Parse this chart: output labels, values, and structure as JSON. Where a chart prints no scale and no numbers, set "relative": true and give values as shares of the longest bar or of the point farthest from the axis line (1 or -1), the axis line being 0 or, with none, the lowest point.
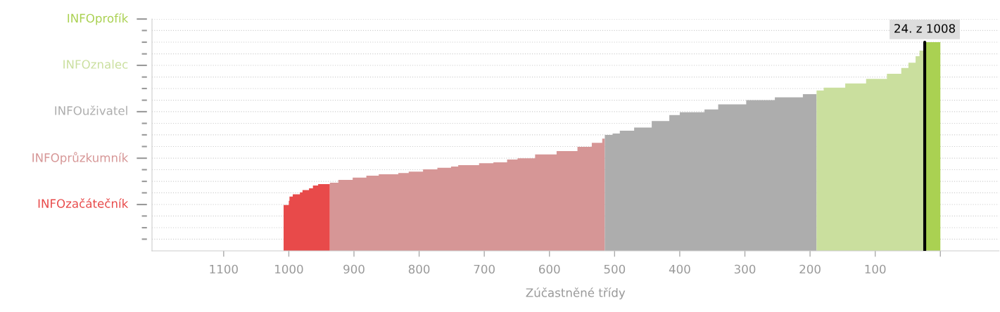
{
  "chart_data": {
    "type": "area",
    "xlabel": "Zúčastněné třídy",
    "relative": true,
    "xlim": [
      1210,
      -90
    ],
    "xticks": [
      1100,
      1000,
      900,
      800,
      700,
      600,
      500,
      400,
      300,
      200,
      100,
      {
        "value": 0,
        "label": null
      }
    ],
    "legend": false,
    "series": [
      {
        "color": "#e84a4a",
        "x": [
          1008,
          1000,
          999,
          994,
          983,
          979,
          969,
          963,
          955,
          937
        ],
        "values": [
          0.22,
          0.24,
          0.26,
          0.271,
          0.28,
          0.291,
          0.3,
          0.313,
          0.32,
          0.32
        ]
      },
      {
        "color": "#d69696",
        "x": [
          937,
          924,
          902,
          881,
          862,
          832,
          816,
          794,
          772,
          751,
          740,
          708,
          686,
          665,
          649,
          622,
          589,
          557,
          535,
          519,
          515
        ],
        "values": [
          0.327,
          0.34,
          0.351,
          0.36,
          0.367,
          0.373,
          0.38,
          0.391,
          0.398,
          0.404,
          0.411,
          0.42,
          0.424,
          0.438,
          0.444,
          0.462,
          0.478,
          0.498,
          0.518,
          0.538,
          0.538
        ]
      },
      {
        "color": "#adadad",
        "x": [
          515,
          503,
          492,
          470,
          443,
          416,
          400,
          373,
          362,
          341,
          298,
          254,
          211,
          190
        ],
        "values": [
          0.556,
          0.562,
          0.576,
          0.591,
          0.622,
          0.651,
          0.664,
          0.664,
          0.678,
          0.702,
          0.722,
          0.736,
          0.751,
          0.751
        ]
      },
      {
        "color": "#cadf9e",
        "x": [
          190,
          179,
          146,
          114,
          82,
          60,
          49,
          38,
          32,
          25,
          23
        ],
        "values": [
          0.769,
          0.782,
          0.802,
          0.824,
          0.849,
          0.876,
          0.902,
          0.933,
          0.96,
          1,
          1
        ]
      },
      {
        "color": "#aad152",
        "x": [
          23,
          0
        ],
        "values": [
          1,
          1
        ]
      }
    ],
    "ref_lines": [
      {
        "axis": "x",
        "value": 24,
        "label": "24. z 1008",
        "color": "#000000"
      },
      {
        "axis": "y",
        "value": 0.056,
        "line_style": "dotted"
      },
      {
        "axis": "y",
        "value": 0.111,
        "line_style": "dotted"
      },
      {
        "axis": "y",
        "value": 0.167,
        "line_style": "dotted"
      },
      {
        "axis": "y",
        "value": 0.222,
        "line_style": "dotted",
        "label": "INFOzačátečník"
      },
      {
        "axis": "y",
        "value": 0.278,
        "line_style": "dotted"
      },
      {
        "axis": "y",
        "value": 0.333,
        "line_style": "dotted"
      },
      {
        "axis": "y",
        "value": 0.389,
        "line_style": "dotted"
      },
      {
        "axis": "y",
        "value": 0.444,
        "line_style": "dotted",
        "label": "INFOprůzkumník"
      },
      {
        "axis": "y",
        "value": 0.5,
        "line_style": "dotted"
      },
      {
        "axis": "y",
        "value": 0.556,
        "line_style": "dotted"
      },
      {
        "axis": "y",
        "value": 0.611,
        "line_style": "dotted"
      },
      {
        "axis": "y",
        "value": 0.667,
        "line_style": "dotted",
        "label": "INFOuživatel"
      },
      {
        "axis": "y",
        "value": 0.722,
        "line_style": "dotted"
      },
      {
        "axis": "y",
        "value": 0.778,
        "line_style": "dotted"
      },
      {
        "axis": "y",
        "value": 0.833,
        "line_style": "dotted"
      },
      {
        "axis": "y",
        "value": 0.889,
        "line_style": "dotted",
        "label": "INFOznalec"
      },
      {
        "axis": "y",
        "value": 0.944,
        "line_style": "dotted"
      },
      {
        "axis": "y",
        "value": 1.0,
        "line_style": "dotted"
      },
      {
        "axis": "y",
        "value": 1.056,
        "line_style": "dotted"
      },
      {
        "axis": "y",
        "value": 1.111,
        "line_style": "dotted",
        "label": "INFOprofík"
      }
    ]
  }
}
